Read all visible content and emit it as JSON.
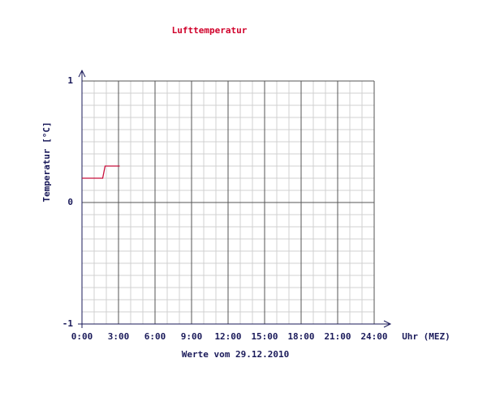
{
  "chart_data": {
    "type": "line",
    "title": "Lufttemperatur",
    "subtitle": "Werte vom 29.12.2010",
    "y_label": "Temperatur [°C]",
    "x_label": "Uhr (MEZ)",
    "x": [
      0,
      1.7,
      1.9,
      3.1
    ],
    "values": [
      0.2,
      0.2,
      0.3,
      0.3
    ],
    "color": "#c8103c",
    "title_color": "#d0002a",
    "xlim": [
      0,
      24
    ],
    "xticks": [
      {
        "value": 0,
        "label": "0:00"
      },
      {
        "value": 3,
        "label": "3:00"
      },
      {
        "value": 6,
        "label": "6:00"
      },
      {
        "value": 9,
        "label": "9:00"
      },
      {
        "value": 12,
        "label": "12:00"
      },
      {
        "value": 15,
        "label": "15:00"
      },
      {
        "value": 18,
        "label": "18:00"
      },
      {
        "value": 21,
        "label": "21:00"
      },
      {
        "value": 24,
        "label": "24:00"
      }
    ],
    "ylim": [
      -1,
      1
    ],
    "yticks": [
      -1,
      0,
      1
    ],
    "minor_xticks": [
      1,
      2,
      4,
      5,
      7,
      8,
      10,
      11,
      13,
      14,
      16,
      17,
      19,
      20,
      22,
      23
    ],
    "minor_yticks": [
      -0.9,
      -0.8,
      -0.7,
      -0.6,
      -0.5,
      -0.4,
      -0.3,
      -0.2,
      -0.1,
      0.1,
      0.2,
      0.3,
      0.4,
      0.5,
      0.6,
      0.7,
      0.8,
      0.9
    ],
    "grid": true
  }
}
